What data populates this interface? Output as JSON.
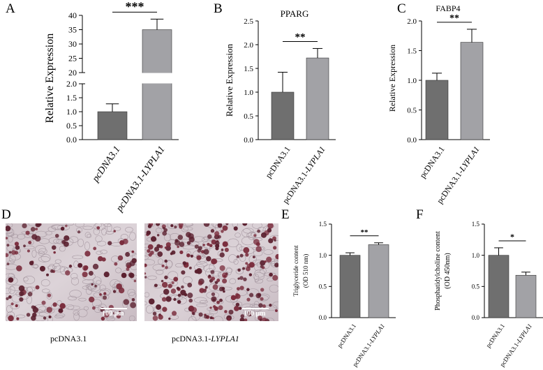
{
  "colors": {
    "bar_control": "#6f6f6f",
    "bar_treatment": "#a2a2a6",
    "axis": "#000000"
  },
  "panels": {
    "A": "A",
    "B": "B",
    "C": "C",
    "D": "D",
    "E": "E",
    "F": "F"
  },
  "microscopy": {
    "left": {
      "caption": "pcDNA3.1",
      "scale": "100 μm"
    },
    "right": {
      "caption_prefix": "pcDNA3.1-",
      "caption_italic": "LYPLA1",
      "scale": "100 μm"
    }
  },
  "chart_data": [
    {
      "panel": "A",
      "type": "bar",
      "title": "",
      "ylabel": "Relative Expression",
      "categories": [
        "pcDNA3.1",
        "pcDNA3.1-LYPLA1"
      ],
      "category_italic": [
        true,
        true
      ],
      "values": [
        1.0,
        35.0
      ],
      "errors": [
        0.28,
        3.7
      ],
      "axis_break": {
        "lower": [
          0,
          2.0
        ],
        "upper": [
          20,
          40
        ]
      },
      "yticks_lower": [
        "0.0",
        "0.5",
        "1.0",
        "1.5",
        "2.0"
      ],
      "yticks_upper": [
        "20",
        "25",
        "30",
        "35",
        "40"
      ],
      "significance": "***",
      "grid": false
    },
    {
      "panel": "B",
      "type": "bar",
      "title": "PPARG",
      "ylabel": "Relative Expression",
      "categories": [
        "pcDNA3.1",
        "pcDNA3.1-LYPLA1"
      ],
      "values": [
        1.0,
        1.72
      ],
      "errors": [
        0.42,
        0.2
      ],
      "ylim": [
        0,
        2.5
      ],
      "yticks": [
        "0.0",
        "0.5",
        "1.0",
        "1.5",
        "2.0",
        "2.5"
      ],
      "significance": "**",
      "grid": false
    },
    {
      "panel": "C",
      "type": "bar",
      "title": "FABP4",
      "ylabel": "Relative Expression",
      "categories": [
        "pcDNA3.1",
        "pcDNA3.1-LYPLA1"
      ],
      "values": [
        1.0,
        1.64
      ],
      "errors": [
        0.12,
        0.22
      ],
      "ylim": [
        0,
        2.0
      ],
      "yticks": [
        "0.0",
        "0.5",
        "1.0",
        "1.5",
        "2.0"
      ],
      "significance": "**",
      "grid": false
    },
    {
      "panel": "E",
      "type": "bar",
      "title": "",
      "ylabel": "Triglyceride content",
      "ylabel2": "(OD 510 nm)",
      "categories": [
        "pcDNA3.1",
        "pcDNA3.1-LYPLA1"
      ],
      "values": [
        1.0,
        1.17
      ],
      "errors": [
        0.04,
        0.03
      ],
      "ylim": [
        0,
        1.5
      ],
      "yticks": [
        "0.0",
        "0.5",
        "1.0",
        "1.5"
      ],
      "significance": "**",
      "grid": false
    },
    {
      "panel": "F",
      "type": "bar",
      "title": "",
      "ylabel": "Phosphatidylcholine content",
      "ylabel2": "(OD 450nm)",
      "categories": [
        "pcDNA3.1",
        "pcDNA3.1-LYPLA1"
      ],
      "values": [
        1.0,
        0.68
      ],
      "errors": [
        0.12,
        0.05
      ],
      "ylim": [
        0,
        1.5
      ],
      "yticks": [
        "0.0",
        "0.5",
        "1.0",
        "1.5"
      ],
      "significance": "*",
      "grid": false
    }
  ]
}
